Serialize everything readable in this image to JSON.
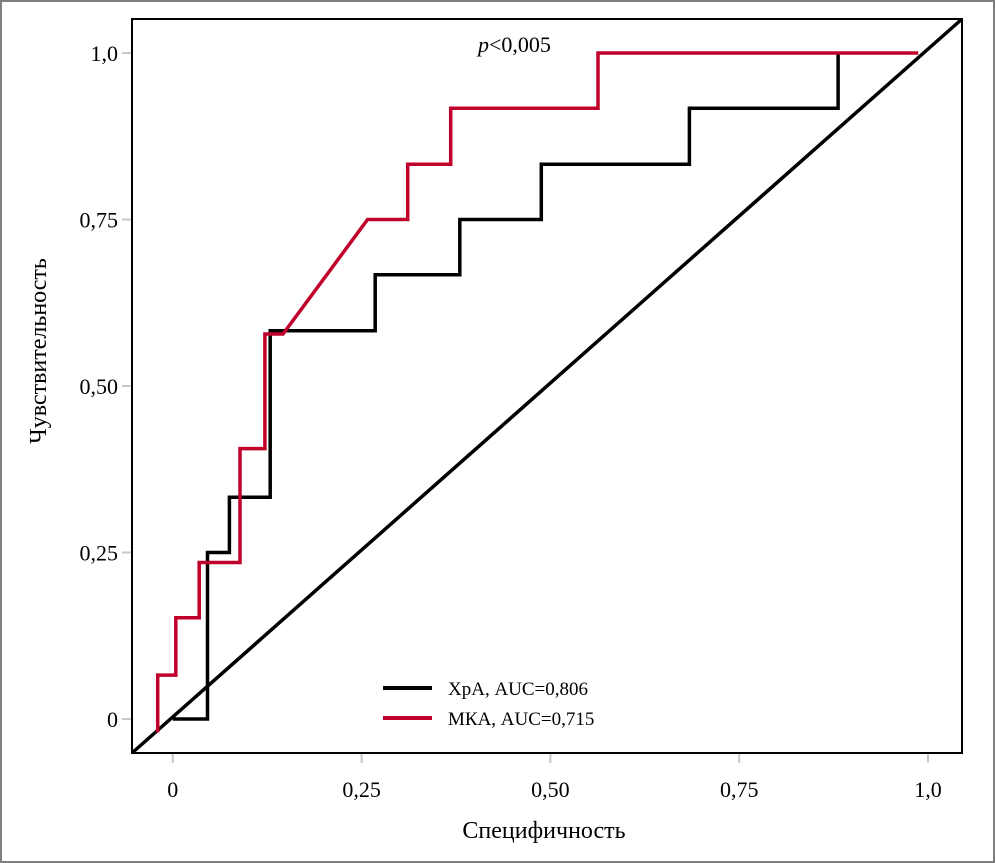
{
  "chart_data": {
    "type": "line",
    "title": "",
    "xlabel": "Специфичность",
    "ylabel": "Чувствительность",
    "xlim": [
      -0.054,
      1.045
    ],
    "ylim": [
      -0.051,
      1.051
    ],
    "grid": false,
    "x_ticks": [
      {
        "value": 0,
        "label": "0"
      },
      {
        "value": 0.25,
        "label": "0,25"
      },
      {
        "value": 0.5,
        "label": "0,50"
      },
      {
        "value": 0.75,
        "label": "0,75"
      },
      {
        "value": 1.0,
        "label": "1,0"
      }
    ],
    "y_ticks": [
      {
        "value": 0,
        "label": "0"
      },
      {
        "value": 0.25,
        "label": "0,25"
      },
      {
        "value": 0.5,
        "label": "0,50"
      },
      {
        "value": 0.75,
        "label": "0,75"
      },
      {
        "value": 1.0,
        "label": "1,0"
      }
    ],
    "annotation": {
      "text_italic": "p",
      "text": "<0,005",
      "x": 0.4,
      "y": 1.0
    },
    "legend": {
      "placement": "bottom-center"
    },
    "reference_line": {
      "name": "diagonal",
      "color": "#000000",
      "points": [
        [
          -0.054,
          -0.051
        ],
        [
          1.045,
          1.051
        ]
      ]
    },
    "series": [
      {
        "name": "ХрА, AUC=0,806",
        "color": "#000000",
        "points": [
          [
            0.0,
            0.0
          ],
          [
            0.046,
            0.0
          ],
          [
            0.046,
            0.25
          ],
          [
            0.075,
            0.25
          ],
          [
            0.075,
            0.333
          ],
          [
            0.129,
            0.333
          ],
          [
            0.129,
            0.583
          ],
          [
            0.268,
            0.583
          ],
          [
            0.268,
            0.667
          ],
          [
            0.38,
            0.667
          ],
          [
            0.38,
            0.75
          ],
          [
            0.488,
            0.75
          ],
          [
            0.488,
            0.833
          ],
          [
            0.684,
            0.833
          ],
          [
            0.684,
            0.917
          ],
          [
            0.881,
            0.917
          ],
          [
            0.881,
            1.0
          ]
        ]
      },
      {
        "name": "МКА, AUC=0,715",
        "color": "#c0002a",
        "points": [
          [
            -0.02,
            -0.02
          ],
          [
            -0.02,
            0.066
          ],
          [
            0.004,
            0.066
          ],
          [
            0.004,
            0.152
          ],
          [
            0.035,
            0.152
          ],
          [
            0.035,
            0.235
          ],
          [
            0.089,
            0.235
          ],
          [
            0.089,
            0.406
          ],
          [
            0.122,
            0.406
          ],
          [
            0.122,
            0.578
          ],
          [
            0.146,
            0.578
          ],
          [
            0.258,
            0.75
          ],
          [
            0.311,
            0.75
          ],
          [
            0.311,
            0.833
          ],
          [
            0.368,
            0.833
          ],
          [
            0.368,
            0.917
          ],
          [
            0.563,
            0.917
          ],
          [
            0.563,
            1.0
          ],
          [
            0.987,
            1.0
          ]
        ]
      }
    ]
  }
}
